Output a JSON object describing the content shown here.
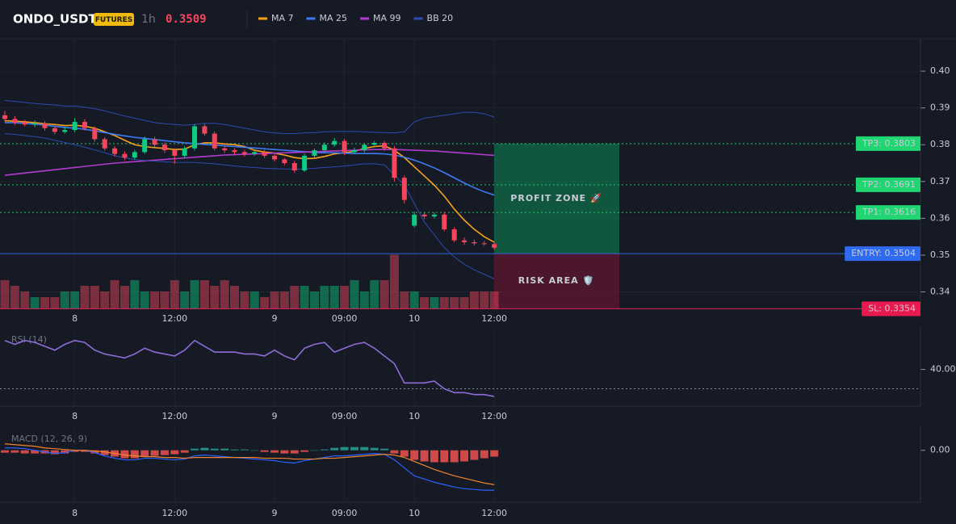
{
  "header": {
    "symbol": "ONDO_USDT",
    "badge": "FUTURES",
    "interval": "1h",
    "price": 0.3509
  },
  "chart_data": [
    {
      "type": "candlestick",
      "categories": [
        null,
        null,
        null,
        null,
        null,
        null,
        null,
        "8",
        null,
        null,
        null,
        null,
        null,
        null,
        null,
        null,
        null,
        "12:00",
        null,
        null,
        null,
        null,
        null,
        null,
        null,
        null,
        null,
        "9",
        null,
        null,
        null,
        null,
        null,
        null,
        "09:00",
        null,
        null,
        null,
        null,
        null,
        null,
        "10",
        null,
        null,
        null,
        null,
        null,
        null,
        null,
        "12:00"
      ],
      "open": [
        0.388,
        0.387,
        0.386,
        0.3855,
        0.3858,
        0.3845,
        0.3835,
        0.384,
        0.3862,
        0.3845,
        0.3815,
        0.379,
        0.3775,
        0.3765,
        0.378,
        0.3815,
        0.38,
        0.3785,
        0.377,
        0.379,
        0.385,
        0.383,
        0.379,
        0.3785,
        0.378,
        0.3775,
        0.378,
        0.377,
        0.376,
        0.375,
        0.373,
        0.377,
        0.3785,
        0.38,
        0.381,
        0.378,
        0.3785,
        0.38,
        0.3805,
        0.379,
        0.371,
        0.358,
        0.361,
        0.3605,
        0.361,
        0.357,
        0.354,
        0.3535,
        0.3532,
        0.353
      ],
      "high": [
        0.3892,
        0.3878,
        0.3868,
        0.3866,
        0.3864,
        0.385,
        0.3848,
        0.3872,
        0.387,
        0.385,
        0.382,
        0.3796,
        0.3782,
        0.3786,
        0.3822,
        0.3822,
        0.3806,
        0.379,
        0.3796,
        0.3856,
        0.3856,
        0.3836,
        0.3796,
        0.379,
        0.3786,
        0.3784,
        0.3786,
        0.3774,
        0.3764,
        0.3756,
        0.3776,
        0.379,
        0.3806,
        0.3818,
        0.3816,
        0.3792,
        0.3804,
        0.381,
        0.381,
        0.3796,
        0.3716,
        0.3618,
        0.3616,
        0.3616,
        0.3616,
        0.3576,
        0.3548,
        0.3542,
        0.3538,
        0.3536
      ],
      "low": [
        0.3862,
        0.3854,
        0.385,
        0.3848,
        0.3838,
        0.3828,
        0.383,
        0.3834,
        0.3838,
        0.3808,
        0.3784,
        0.3768,
        0.3758,
        0.376,
        0.3775,
        0.3794,
        0.3778,
        0.3748,
        0.3764,
        0.3784,
        0.3824,
        0.3784,
        0.3778,
        0.3774,
        0.3768,
        0.377,
        0.3764,
        0.3754,
        0.3744,
        0.3724,
        0.3726,
        0.3764,
        0.378,
        0.3795,
        0.3772,
        0.3776,
        0.378,
        0.3798,
        0.3784,
        0.37,
        0.364,
        0.3575,
        0.3598,
        0.36,
        0.3565,
        0.3535,
        0.3528,
        0.3526,
        0.3525,
        0.3514
      ],
      "close": [
        0.387,
        0.386,
        0.3855,
        0.3858,
        0.3845,
        0.3835,
        0.384,
        0.3862,
        0.3845,
        0.3815,
        0.379,
        0.3775,
        0.3765,
        0.378,
        0.3815,
        0.38,
        0.3785,
        0.377,
        0.379,
        0.385,
        0.383,
        0.379,
        0.3785,
        0.378,
        0.3775,
        0.378,
        0.377,
        0.376,
        0.375,
        0.373,
        0.377,
        0.3785,
        0.38,
        0.381,
        0.378,
        0.3785,
        0.38,
        0.3805,
        0.379,
        0.371,
        0.365,
        0.361,
        0.3605,
        0.361,
        0.357,
        0.354,
        0.3535,
        0.3532,
        0.353,
        0.352
      ],
      "up_color": "#0ecb81",
      "down_color": "#f6465d",
      "volume": [
        5,
        4,
        3,
        2,
        2,
        2,
        3,
        3,
        4,
        4,
        3,
        5,
        4,
        5,
        3,
        3,
        3,
        5,
        3,
        5,
        5,
        4,
        5,
        4,
        3,
        3,
        2,
        3,
        3,
        4,
        4,
        3,
        4,
        4,
        4,
        5,
        3,
        5,
        5,
        9.5,
        3,
        3,
        2,
        2,
        2,
        2,
        2,
        3,
        3,
        3
      ],
      "volume_lim": [
        0,
        10
      ],
      "overlays": [
        {
          "name": "MA 7",
          "color": "#f7a21b",
          "values": [
            0.3865,
            0.3864,
            0.3862,
            0.386,
            0.3857,
            0.3855,
            0.3852,
            0.3853,
            0.385,
            0.3845,
            0.3835,
            0.3825,
            0.3812,
            0.38,
            0.3795,
            0.3792,
            0.379,
            0.3787,
            0.3788,
            0.38,
            0.3805,
            0.3805,
            0.3802,
            0.38,
            0.3795,
            0.3785,
            0.378,
            0.3777,
            0.3772,
            0.3765,
            0.3762,
            0.3763,
            0.3768,
            0.3775,
            0.3778,
            0.3782,
            0.379,
            0.3795,
            0.3797,
            0.3785,
            0.3765,
            0.374,
            0.3715,
            0.369,
            0.366,
            0.3625,
            0.3595,
            0.357,
            0.355,
            0.3535
          ]
        },
        {
          "name": "MA 25",
          "color": "#3d7bf5",
          "values": [
            0.386,
            0.386,
            0.3858,
            0.3856,
            0.3853,
            0.385,
            0.3847,
            0.3845,
            0.3842,
            0.3838,
            0.3833,
            0.3828,
            0.3824,
            0.382,
            0.3817,
            0.3814,
            0.3811,
            0.3808,
            0.3805,
            0.3803,
            0.3801,
            0.3799,
            0.3797,
            0.3795,
            0.3793,
            0.3791,
            0.3789,
            0.3787,
            0.3785,
            0.3783,
            0.3781,
            0.3779,
            0.3778,
            0.3778,
            0.3777,
            0.3776,
            0.3776,
            0.3776,
            0.3775,
            0.3772,
            0.3766,
            0.3758,
            0.3748,
            0.3737,
            0.3724,
            0.371,
            0.3696,
            0.3683,
            0.3672,
            0.3663
          ]
        },
        {
          "name": "MA 99",
          "color": "#b03ccf",
          "values": [
            0.3717,
            0.372,
            0.3723,
            0.3726,
            0.3729,
            0.3732,
            0.3735,
            0.3738,
            0.3741,
            0.3744,
            0.3747,
            0.375,
            0.3752,
            0.3754,
            0.3756,
            0.3758,
            0.376,
            0.3762,
            0.3764,
            0.3766,
            0.3768,
            0.377,
            0.3772,
            0.3773,
            0.3774,
            0.3775,
            0.3776,
            0.3777,
            0.3778,
            0.3779,
            0.378,
            0.3781,
            0.3782,
            0.3783,
            0.3784,
            0.3785,
            0.3786,
            0.3787,
            0.3787,
            0.3787,
            0.3786,
            0.3785,
            0.3784,
            0.3783,
            0.3781,
            0.3779,
            0.3777,
            0.3775,
            0.3773,
            0.3771
          ]
        },
        {
          "name": "BB 20",
          "color": "#2d4bb0",
          "upper": [
            0.392,
            0.3918,
            0.3915,
            0.3912,
            0.391,
            0.3908,
            0.3905,
            0.3905,
            0.3902,
            0.3898,
            0.3892,
            0.3885,
            0.3878,
            0.3872,
            0.3866,
            0.386,
            0.3857,
            0.3855,
            0.3853,
            0.3855,
            0.3858,
            0.3858,
            0.3855,
            0.385,
            0.3845,
            0.384,
            0.3835,
            0.3832,
            0.383,
            0.383,
            0.3832,
            0.3833,
            0.3835,
            0.3836,
            0.3836,
            0.3836,
            0.3835,
            0.3834,
            0.3833,
            0.3832,
            0.3835,
            0.3862,
            0.3872,
            0.3876,
            0.388,
            0.3884,
            0.3888,
            0.3888,
            0.3884,
            0.3875
          ],
          "lower": [
            0.383,
            0.3828,
            0.3825,
            0.3822,
            0.3818,
            0.3812,
            0.3806,
            0.38,
            0.3793,
            0.3786,
            0.3778,
            0.377,
            0.3764,
            0.376,
            0.3757,
            0.3755,
            0.3754,
            0.3752,
            0.3752,
            0.3752,
            0.375,
            0.3748,
            0.3745,
            0.3742,
            0.374,
            0.3738,
            0.3736,
            0.3735,
            0.3734,
            0.3733,
            0.3734,
            0.3736,
            0.3738,
            0.374,
            0.3742,
            0.3745,
            0.3748,
            0.3748,
            0.3745,
            0.3718,
            0.369,
            0.364,
            0.359,
            0.3555,
            0.352,
            0.3495,
            0.3475,
            0.346,
            0.3448,
            0.3435
          ]
        }
      ],
      "levels": [
        {
          "value": 0.3803,
          "label": "TP3: 0.3803",
          "color": "#1fd672",
          "dashed": true
        },
        {
          "value": 0.3691,
          "label": "TP2: 0.3691",
          "color": "#1fd672",
          "dashed": true
        },
        {
          "value": 0.3616,
          "label": "TP1: 0.3616",
          "color": "#1fd672",
          "dashed": true
        },
        {
          "value": 0.3504,
          "label": "ENTRY: 0.3504",
          "color": "#2f6bf0",
          "dashed": false
        },
        {
          "value": 0.3354,
          "label": "SL: 0.3354",
          "color": "#e8194f",
          "dashed": false
        }
      ],
      "zones": [
        {
          "label": "PROFIT ZONE 🚀",
          "color": "#0f8a55",
          "text_color": "#1fd672"
        },
        {
          "label": "RISK AREA 🛡️",
          "color": "#7a1535",
          "text_color": "#f0356a"
        }
      ],
      "ylim": [
        0.3355,
        0.4088
      ],
      "yticks": [
        {
          "value": 0.4,
          "label": "0.40"
        },
        0.39,
        0.38,
        0.37,
        0.36,
        0.35,
        {
          "value": 0.34,
          "label": "0.34"
        }
      ],
      "grid": true
    },
    {
      "type": "line",
      "title": "RSI (14)",
      "categories": [
        null,
        null,
        null,
        null,
        null,
        null,
        null,
        "8",
        null,
        null,
        null,
        null,
        null,
        null,
        null,
        null,
        null,
        "12:00",
        null,
        null,
        null,
        null,
        null,
        null,
        null,
        null,
        null,
        "9",
        null,
        null,
        null,
        null,
        null,
        null,
        "09:00",
        null,
        null,
        null,
        null,
        null,
        null,
        "10",
        null,
        null,
        null,
        null,
        null,
        null,
        null,
        "12:00"
      ],
      "values": [
        55,
        53,
        55,
        54,
        52,
        50,
        53,
        55,
        54,
        50,
        48,
        47,
        46,
        48,
        51,
        49,
        48,
        47,
        50,
        55,
        52,
        49,
        49,
        49,
        48,
        48,
        47,
        50,
        47,
        45,
        51,
        53,
        54,
        49,
        51,
        53,
        54,
        51,
        47,
        43,
        33,
        33,
        33,
        34,
        30,
        28,
        28,
        27,
        27,
        26
      ],
      "color": "#8e6cd8",
      "level": 30,
      "ylim": [
        21,
        62
      ],
      "yticks": [
        {
          "value": 40,
          "label": "40.00"
        }
      ]
    },
    {
      "type": "macd",
      "title": "MACD (12, 26, 9)",
      "categories": [
        null,
        null,
        null,
        null,
        null,
        null,
        null,
        "8",
        null,
        null,
        null,
        null,
        null,
        null,
        null,
        null,
        null,
        "12:00",
        null,
        null,
        null,
        null,
        null,
        null,
        null,
        null,
        null,
        "9",
        null,
        null,
        null,
        null,
        null,
        null,
        "09:00",
        null,
        null,
        null,
        null,
        null,
        null,
        "10",
        null,
        null,
        null,
        null,
        null,
        null,
        null,
        "12:00"
      ],
      "series": [
        {
          "color": "#2962ff",
          "values": [
            0.0003,
            0.0003,
            0.0002,
            0.0,
            -0.0002,
            -0.0004,
            -0.0003,
            0.0,
            0.0,
            -0.0003,
            -0.0007,
            -0.001,
            -0.0012,
            -0.0012,
            -0.001,
            -0.001,
            -0.0011,
            -0.0012,
            -0.0011,
            -0.0007,
            -0.0006,
            -0.0007,
            -0.0008,
            -0.0009,
            -0.001,
            -0.0011,
            -0.0012,
            -0.0013,
            -0.0015,
            -0.0016,
            -0.0013,
            -0.0011,
            -0.0009,
            -0.0007,
            -0.0007,
            -0.0006,
            -0.0005,
            -0.0004,
            -0.0005,
            -0.0012,
            -0.0022,
            -0.0032,
            -0.0036,
            -0.004,
            -0.0043,
            -0.0046,
            -0.0048,
            -0.0049,
            -0.005,
            -0.005
          ]
        },
        {
          "color": "#f0852d",
          "values": [
            0.0008,
            0.0007,
            0.0006,
            0.0005,
            0.0003,
            0.0002,
            0.0001,
            0.0,
            0.0,
            -0.0001,
            -0.0002,
            -0.0004,
            -0.0006,
            -0.0007,
            -0.0008,
            -0.0008,
            -0.0009,
            -0.0009,
            -0.001,
            -0.0009,
            -0.0009,
            -0.0009,
            -0.0009,
            -0.0009,
            -0.0009,
            -0.0009,
            -0.001,
            -0.001,
            -0.001,
            -0.0011,
            -0.0011,
            -0.0011,
            -0.001,
            -0.001,
            -0.0009,
            -0.0008,
            -0.0007,
            -0.0006,
            -0.0005,
            -0.0006,
            -0.0009,
            -0.0014,
            -0.0019,
            -0.0024,
            -0.0028,
            -0.0032,
            -0.0035,
            -0.0038,
            -0.0041,
            -0.0043
          ]
        }
      ],
      "histogram": {
        "up_color": "#26a69a",
        "down_color": "#ef5350",
        "values": [
          -0.0003,
          -0.0003,
          -0.0004,
          -0.0004,
          -0.0004,
          -0.0005,
          -0.0004,
          -0.0002,
          -0.0002,
          -0.0004,
          -0.0006,
          -0.0008,
          -0.001,
          -0.001,
          -0.0008,
          -0.0007,
          -0.0006,
          -0.0005,
          -0.0003,
          0.0002,
          0.0003,
          0.0002,
          0.0002,
          0.0001,
          0.0001,
          0.0,
          -0.0002,
          -0.0003,
          -0.0004,
          -0.0004,
          -0.0002,
          0.0,
          0.0001,
          0.0003,
          0.0004,
          0.0004,
          0.0004,
          0.0003,
          0.0002,
          -0.0004,
          -0.0008,
          -0.0012,
          -0.0014,
          -0.0015,
          -0.0015,
          -0.0015,
          -0.0014,
          -0.0012,
          -0.001,
          -0.0008
        ]
      },
      "ylim": [
        -0.0065,
        0.003
      ],
      "yticks": [
        {
          "value": 0,
          "label": "0.00"
        }
      ]
    }
  ]
}
